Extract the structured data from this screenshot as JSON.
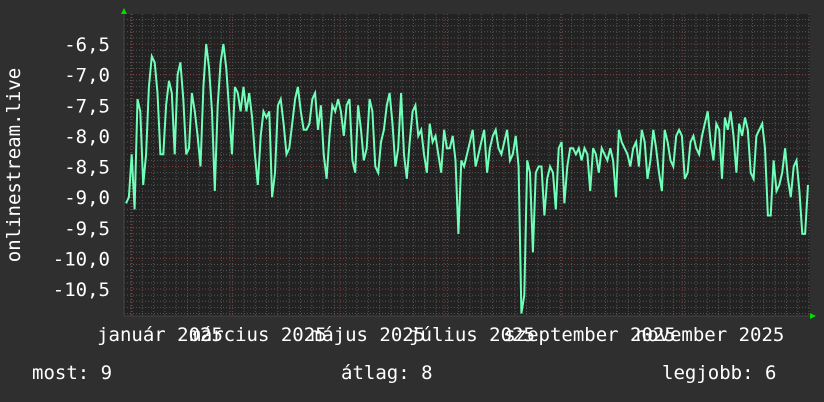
{
  "chart_data": {
    "type": "line",
    "ylabel": "onlinestream.live",
    "ylim": [
      -10.94,
      -6.01
    ],
    "yticks": [
      "-6,5",
      "-7,0",
      "-7,5",
      "-8,0",
      "-8,5",
      "-9,0",
      "-9,5",
      "-10,0",
      "-10,5"
    ],
    "ytick_values": [
      -6.5,
      -7.0,
      -7.5,
      -8.0,
      -8.5,
      -9.0,
      -9.5,
      -10.0,
      -10.5
    ],
    "xticks": [
      "január 2025",
      "március 2025",
      "május 2025",
      "július 2025",
      "szeptember 2025",
      "november 2025"
    ],
    "grid": true,
    "colors": {
      "background": "#2f2f2f",
      "plot": "#222222",
      "line": "#6fffb8",
      "grid_minor": "#555555",
      "grid_major": "#8a3a3a",
      "arrow": "#00dd00"
    },
    "series": [
      {
        "values": [
          -9.1,
          -9.0,
          -8.3,
          -9.2,
          -7.4,
          -7.6,
          -8.8,
          -8.3,
          -7.2,
          -6.7,
          -6.8,
          -7.3,
          -8.3,
          -8.3,
          -7.5,
          -7.1,
          -7.3,
          -8.3,
          -7.0,
          -6.8,
          -7.4,
          -8.3,
          -8.2,
          -7.3,
          -7.6,
          -8.0,
          -8.5,
          -7.2,
          -6.5,
          -6.9,
          -7.6,
          -8.9,
          -7.5,
          -6.8,
          -6.5,
          -6.9,
          -7.6,
          -8.3,
          -7.2,
          -7.3,
          -7.6,
          -7.2,
          -7.6,
          -7.3,
          -7.7,
          -8.3,
          -8.8,
          -8.0,
          -7.6,
          -7.7,
          -7.6,
          -9.0,
          -8.6,
          -7.5,
          -7.4,
          -7.8,
          -8.3,
          -8.2,
          -7.8,
          -7.4,
          -7.2,
          -7.6,
          -7.9,
          -7.9,
          -7.8,
          -7.4,
          -7.3,
          -7.9,
          -7.5,
          -8.3,
          -8.7,
          -8.0,
          -7.5,
          -7.6,
          -7.4,
          -7.6,
          -8.0,
          -7.5,
          -7.4,
          -8.4,
          -8.6,
          -7.5,
          -7.9,
          -8.4,
          -8.2,
          -7.4,
          -7.6,
          -8.5,
          -8.6,
          -8.1,
          -7.9,
          -7.5,
          -7.3,
          -7.8,
          -8.5,
          -8.2,
          -7.3,
          -8.3,
          -8.7,
          -8.1,
          -7.6,
          -7.5,
          -8.0,
          -7.9,
          -8.3,
          -8.6,
          -7.8,
          -8.1,
          -8.0,
          -8.3,
          -8.6,
          -7.9,
          -8.2,
          -8.2,
          -8.0,
          -8.4,
          -9.6,
          -8.4,
          -8.5,
          -8.3,
          -8.1,
          -7.9,
          -8.5,
          -8.3,
          -8.1,
          -7.9,
          -8.6,
          -8.2,
          -8.0,
          -7.9,
          -8.2,
          -8.3,
          -8.1,
          -7.9,
          -8.4,
          -8.3,
          -8.0,
          -8.5,
          -10.9,
          -10.6,
          -8.4,
          -8.6,
          -9.9,
          -8.6,
          -8.5,
          -8.5,
          -9.3,
          -8.7,
          -8.5,
          -8.6,
          -9.2,
          -8.2,
          -8.1,
          -9.1,
          -8.5,
          -8.2,
          -8.2,
          -8.3,
          -8.2,
          -8.4,
          -8.2,
          -8.3,
          -8.9,
          -8.2,
          -8.3,
          -8.6,
          -8.2,
          -8.3,
          -8.4,
          -8.2,
          -8.4,
          -9.0,
          -7.9,
          -8.1,
          -8.2,
          -8.3,
          -8.5,
          -8.2,
          -8.1,
          -8.5,
          -7.9,
          -8.1,
          -8.7,
          -8.4,
          -7.9,
          -8.2,
          -8.6,
          -8.9,
          -7.9,
          -8.1,
          -8.4,
          -8.5,
          -8.0,
          -7.9,
          -8.0,
          -8.7,
          -8.6,
          -8.1,
          -8.0,
          -8.2,
          -8.3,
          -8.0,
          -7.8,
          -7.6,
          -8.1,
          -8.4,
          -7.8,
          -7.9,
          -8.7,
          -7.7,
          -7.9,
          -7.6,
          -8.0,
          -8.6,
          -7.8,
          -8.0,
          -7.7,
          -7.9,
          -8.6,
          -8.7,
          -8.0,
          -7.9,
          -7.8,
          -8.2,
          -9.3,
          -9.3,
          -8.4,
          -8.9,
          -8.8,
          -8.6,
          -8.2,
          -8.7,
          -9.0,
          -8.5,
          -8.4,
          -8.9,
          -9.6,
          -9.6,
          -8.8
        ]
      }
    ]
  },
  "legend": {
    "current": "most: 9",
    "average": "átlag: 8",
    "best": "legjobb: 6"
  }
}
